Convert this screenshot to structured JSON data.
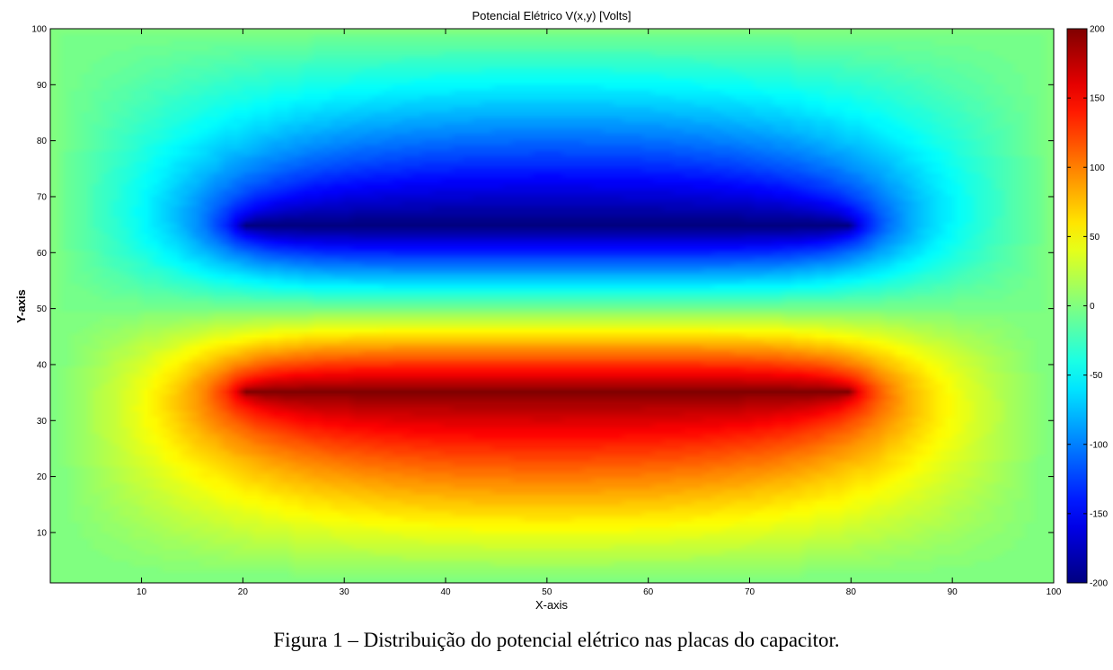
{
  "chart_data": {
    "type": "heatmap",
    "subtype": "filled-contour",
    "title": "Potencial Elétrico V(x,y) [Volts]",
    "xlabel": "X-axis",
    "ylabel": "Y-axis",
    "xlim": [
      1,
      100
    ],
    "ylim": [
      1,
      100
    ],
    "x_ticks": [
      "10",
      "20",
      "30",
      "40",
      "50",
      "60",
      "70",
      "80",
      "90",
      "100"
    ],
    "y_ticks": [
      "10",
      "20",
      "30",
      "40",
      "50",
      "60",
      "70",
      "80",
      "90",
      "100"
    ],
    "colormap": "jet",
    "colorbar": {
      "range": [
        -200,
        200
      ],
      "ticks": [
        "200",
        "150",
        "100",
        "50",
        "0",
        "-50",
        "-100",
        "-150",
        "-200"
      ]
    },
    "plates": [
      {
        "name": "",
        "potential": 200,
        "y": 35,
        "x_start": 20,
        "x_end": 80
      },
      {
        "name": "",
        "potential": -200,
        "y": 65,
        "x_start": 20,
        "x_end": 80
      }
    ],
    "boundary_potential": 0,
    "grid": false
  },
  "caption": "Figura 1 – Distribuição do potencial elétrico nas placas do capacitor."
}
